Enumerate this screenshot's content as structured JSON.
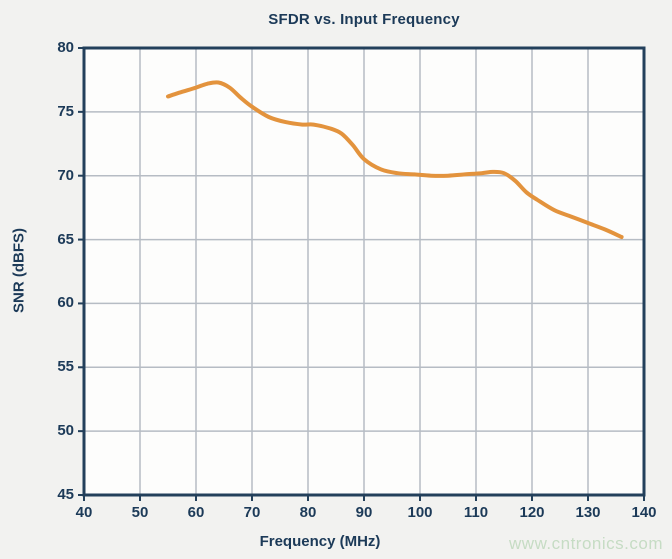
{
  "page": {
    "watermark": "www.cntronics.com"
  },
  "chart_data": {
    "type": "line",
    "title": "SFDR vs. Input Frequency",
    "xlabel": "Frequency (MHz)",
    "ylabel": "SNR (dBFS)",
    "xlim": [
      40,
      140
    ],
    "ylim": [
      45,
      80
    ],
    "x_ticks": [
      40,
      50,
      60,
      70,
      80,
      90,
      100,
      110,
      120,
      130,
      140
    ],
    "y_ticks": [
      45,
      50,
      55,
      60,
      65,
      70,
      75,
      80
    ],
    "grid": true,
    "legend_position": "none",
    "series": [
      {
        "name": "SFDR",
        "x": [
          55,
          57,
          60,
          62,
          64,
          66,
          68,
          70,
          73,
          76,
          79,
          81,
          84,
          86,
          88,
          90,
          93,
          96,
          99,
          102,
          105,
          108,
          111,
          113,
          115,
          117,
          119,
          121,
          124,
          127,
          130,
          133,
          136
        ],
        "y": [
          76.2,
          76.5,
          76.9,
          77.2,
          77.3,
          76.9,
          76.1,
          75.4,
          74.6,
          74.2,
          74.0,
          74.0,
          73.7,
          73.3,
          72.4,
          71.3,
          70.5,
          70.2,
          70.1,
          70.0,
          70.0,
          70.1,
          70.2,
          70.3,
          70.2,
          69.6,
          68.7,
          68.1,
          67.3,
          66.8,
          66.3,
          65.8,
          65.2
        ]
      }
    ],
    "colors": {
      "title": "#1c3a58",
      "axis_text": "#1c3a58",
      "border": "#23405b",
      "grid": "#b6bcc4",
      "curve": "#e3933d",
      "watermark": "#c6dcc4",
      "plot_bg": "#fdfdfc",
      "page_bg": "#f2f2f0"
    }
  }
}
